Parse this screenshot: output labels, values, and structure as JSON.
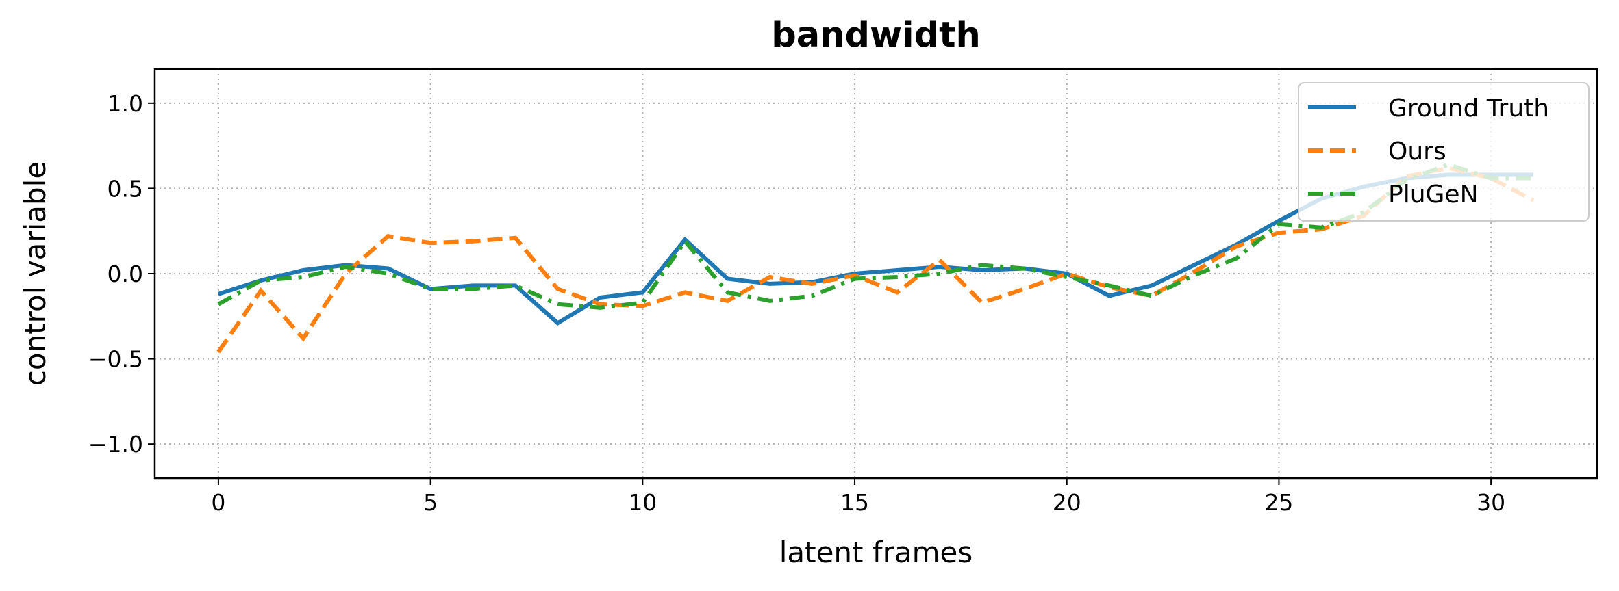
{
  "chart_data": {
    "type": "line",
    "title": "bandwidth",
    "xlabel": "latent frames",
    "ylabel": "control variable",
    "xlim": [
      -1.5,
      32.5
    ],
    "ylim": [
      -1.2,
      1.2
    ],
    "xticks": [
      0,
      5,
      10,
      15,
      20,
      25,
      30
    ],
    "xtick_labels": [
      "0",
      "5",
      "10",
      "15",
      "20",
      "25",
      "30"
    ],
    "yticks": [
      1.0,
      0.5,
      0.0,
      -0.5,
      -1.0
    ],
    "ytick_labels": [
      "1.0",
      "0.5",
      "0.0",
      "−0.5",
      "−1.0"
    ],
    "grid": true,
    "legend_position": "top-right",
    "series": [
      {
        "name": "Ground Truth",
        "color": "#1f77b4",
        "dash": "solid",
        "x": [
          0,
          1,
          2,
          3,
          4,
          5,
          6,
          7,
          8,
          9,
          10,
          11,
          12,
          13,
          14,
          15,
          16,
          17,
          18,
          19,
          20,
          21,
          22,
          23,
          24,
          25,
          26,
          27,
          28,
          29,
          30,
          31
        ],
        "values": [
          -0.12,
          -0.04,
          0.02,
          0.05,
          0.03,
          -0.09,
          -0.07,
          -0.07,
          -0.29,
          -0.14,
          -0.11,
          0.2,
          -0.03,
          -0.06,
          -0.05,
          0.0,
          0.02,
          0.04,
          0.02,
          0.03,
          0.0,
          -0.13,
          -0.07,
          0.05,
          0.17,
          0.31,
          0.44,
          0.51,
          0.56,
          0.58,
          0.58,
          0.58
        ]
      },
      {
        "name": "Ours",
        "color": "#ff7f0e",
        "dash": "dashed",
        "x": [
          0,
          1,
          2,
          3,
          4,
          5,
          6,
          7,
          8,
          9,
          10,
          11,
          12,
          13,
          14,
          15,
          16,
          17,
          18,
          19,
          20,
          21,
          22,
          23,
          24,
          25,
          26,
          27,
          28,
          29,
          30,
          31
        ],
        "values": [
          -0.46,
          -0.1,
          -0.38,
          0.0,
          0.22,
          0.18,
          0.19,
          0.21,
          -0.09,
          -0.18,
          -0.19,
          -0.11,
          -0.16,
          -0.02,
          -0.06,
          -0.01,
          -0.11,
          0.08,
          -0.17,
          -0.09,
          0.0,
          -0.08,
          -0.13,
          0.01,
          0.16,
          0.24,
          0.26,
          0.34,
          0.57,
          0.62,
          0.56,
          0.43
        ]
      },
      {
        "name": "PluGeN",
        "color": "#2ca02c",
        "dash": "dashdot",
        "x": [
          0,
          1,
          2,
          3,
          4,
          5,
          6,
          7,
          8,
          9,
          10,
          11,
          12,
          13,
          14,
          15,
          16,
          17,
          18,
          19,
          20,
          21,
          22,
          23,
          24,
          25,
          26,
          27,
          28,
          29,
          30,
          31
        ],
        "values": [
          -0.18,
          -0.04,
          -0.02,
          0.04,
          0.0,
          -0.09,
          -0.09,
          -0.07,
          -0.18,
          -0.2,
          -0.17,
          0.19,
          -0.11,
          -0.16,
          -0.13,
          -0.03,
          -0.02,
          0.0,
          0.05,
          0.03,
          -0.02,
          -0.07,
          -0.13,
          -0.01,
          0.09,
          0.29,
          0.27,
          0.36,
          0.55,
          0.64,
          0.56,
          0.56
        ]
      }
    ]
  }
}
